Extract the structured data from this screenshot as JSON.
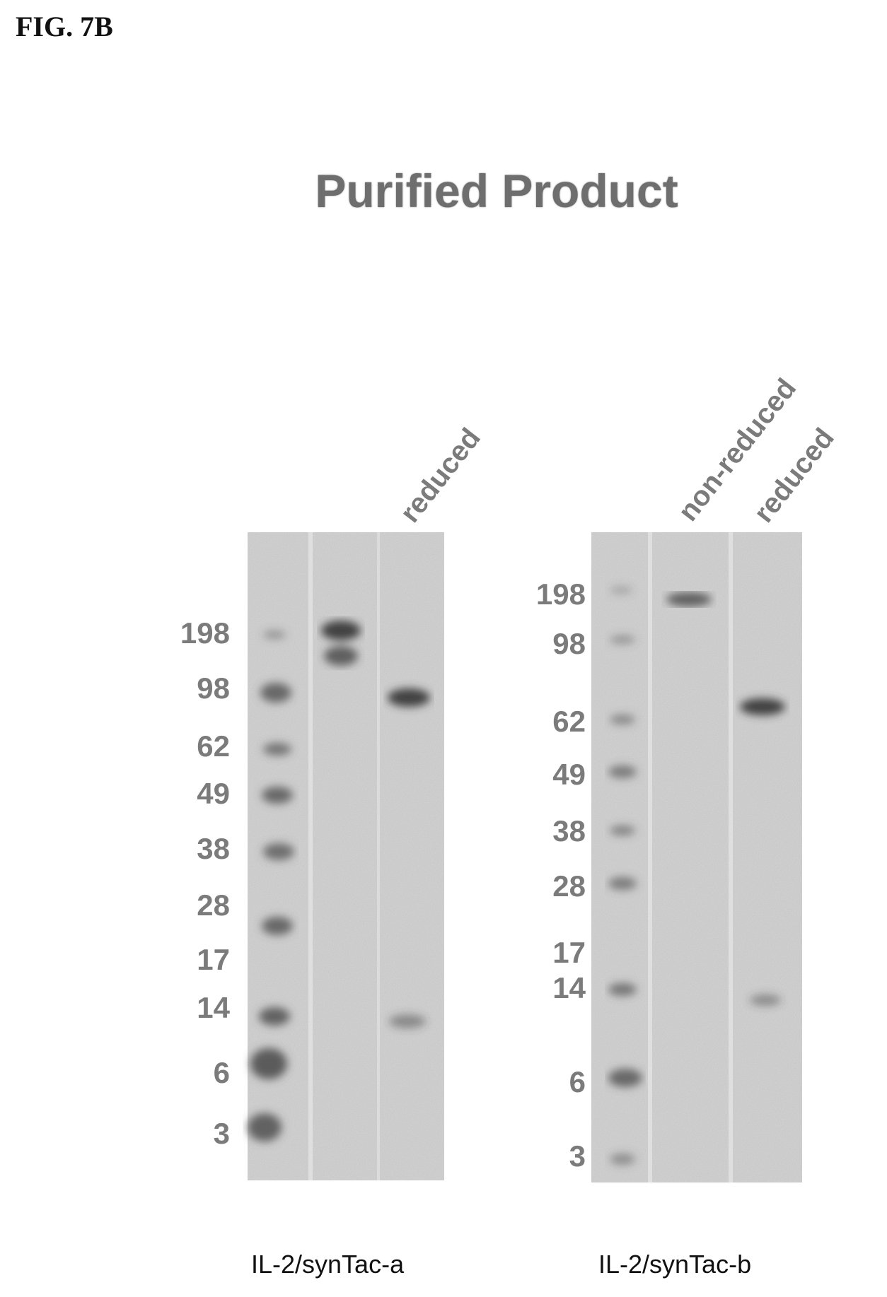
{
  "figure_label": "FIG. 7B",
  "title": "Purified Product",
  "gels": [
    {
      "caption": "IL-2/synTac-a",
      "lane_labels": [
        "reduced"
      ],
      "markers": [
        "198",
        "98",
        "62",
        "49",
        "38",
        "28",
        "17",
        "14",
        "6",
        "3"
      ]
    },
    {
      "caption": "IL-2/synTac-b",
      "lane_labels": [
        "non-reduced",
        "reduced"
      ],
      "markers": [
        "198",
        "98",
        "62",
        "49",
        "38",
        "28",
        "17",
        "14",
        "6",
        "3"
      ]
    }
  ]
}
